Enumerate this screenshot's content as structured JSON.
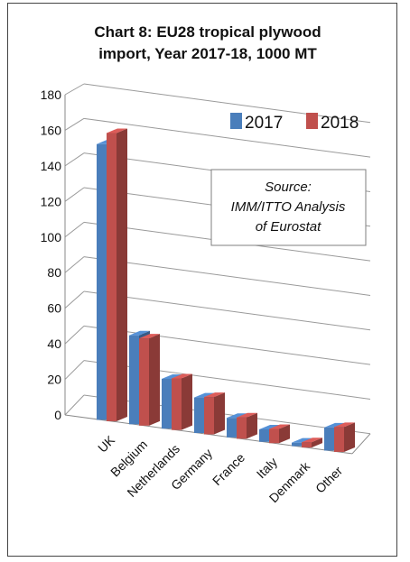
{
  "chart_data": {
    "type": "bar",
    "title_line1": "Chart 8: EU28 tropical plywood",
    "title_line2": "import, Year 2017-18, 1000 MT",
    "categories": [
      "UK",
      "Belgium",
      "Netherlands",
      "Germany",
      "France",
      "Italy",
      "Denmark",
      "Other"
    ],
    "series": [
      {
        "name": "2017",
        "values": [
          155,
          50,
          28,
          20,
          11,
          7,
          2,
          13
        ],
        "color": "#4a7ebb"
      },
      {
        "name": "2018",
        "values": [
          162,
          49,
          29,
          21,
          12,
          8,
          3,
          14
        ],
        "color": "#c0504d"
      }
    ],
    "yticks": [
      "0",
      "20",
      "40",
      "60",
      "80",
      "100",
      "120",
      "140",
      "160",
      "180"
    ],
    "ylim": [
      0,
      180
    ],
    "grid": true,
    "legend_position": "top-right",
    "source_lines": [
      "Source:",
      "IMM/ITTO Analysis",
      "of Eurostat"
    ]
  }
}
